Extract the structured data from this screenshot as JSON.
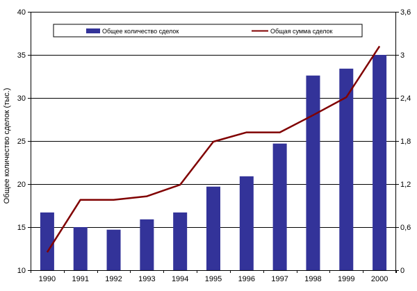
{
  "chart_data": {
    "type": "bar+line",
    "title": "",
    "categories": [
      "1990",
      "1991",
      "1992",
      "1993",
      "1994",
      "1995",
      "1996",
      "1997",
      "1998",
      "1999",
      "2000"
    ],
    "series": [
      {
        "name": "Общее количество сделок",
        "type": "bar",
        "axis": "left",
        "color": "#333399",
        "values": [
          16.7,
          15.0,
          14.7,
          15.9,
          16.7,
          19.7,
          20.9,
          24.7,
          32.6,
          33.4,
          35.0
        ]
      },
      {
        "name": "Общая сумма сделок",
        "type": "line",
        "axis": "right",
        "color": "#800000",
        "values": [
          0.25,
          0.98,
          0.98,
          1.03,
          1.19,
          1.79,
          1.92,
          1.92,
          2.16,
          2.41,
          3.12
        ]
      }
    ],
    "ylabel": "Общее количество сделок (тыс.)",
    "y2label": "",
    "xlabel": "",
    "ylim": [
      10,
      40
    ],
    "y2lim": [
      0,
      3.6
    ],
    "yticks": [
      "10",
      "15",
      "20",
      "25",
      "30",
      "35",
      "40"
    ],
    "y2ticks": [
      "0",
      "0,6",
      "1,2",
      "1,8",
      "2,4",
      "3",
      "3,6"
    ],
    "grid": true,
    "legend_position": "top"
  }
}
